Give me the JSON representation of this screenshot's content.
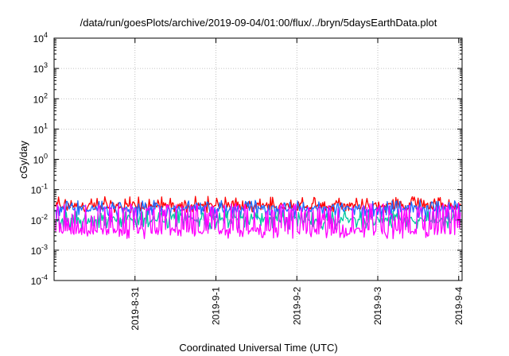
{
  "chart_data": {
    "type": "line",
    "title": "/data/run/goesPlots/archive/2019-09-04/01:00/flux/../bryn/5daysEarthData.plot",
    "xlabel": "Coordinated Universal Time (UTC)",
    "ylabel": "cGy/day",
    "yscale": "log",
    "ylim": [
      0.0001,
      10000
    ],
    "y_ticks": [
      {
        "base": "10",
        "exp": "-4",
        "value": 0.0001
      },
      {
        "base": "10",
        "exp": "-3",
        "value": 0.001
      },
      {
        "base": "10",
        "exp": "-2",
        "value": 0.01
      },
      {
        "base": "10",
        "exp": "-1",
        "value": 0.1
      },
      {
        "base": "10",
        "exp": "0",
        "value": 1
      },
      {
        "base": "10",
        "exp": "1",
        "value": 10
      },
      {
        "base": "10",
        "exp": "2",
        "value": 100
      },
      {
        "base": "10",
        "exp": "3",
        "value": 1000
      },
      {
        "base": "10",
        "exp": "4",
        "value": 10000
      }
    ],
    "xlim": [
      "2019-08-30T00:00",
      "2019-09-04T01:00"
    ],
    "x_ticks": [
      {
        "label": "2019-8-31",
        "value": "2019-08-31"
      },
      {
        "label": "2019-9-1",
        "value": "2019-09-01"
      },
      {
        "label": "2019-9-2",
        "value": "2019-09-02"
      },
      {
        "label": "2019-9-3",
        "value": "2019-09-03"
      },
      {
        "label": "2019-9-4",
        "value": "2019-09-04"
      }
    ],
    "grid": true,
    "series": [
      {
        "color": "#ff0000",
        "typical": 0.03,
        "low": 0.022,
        "high": 0.06
      },
      {
        "color": "#1a6dff",
        "typical": 0.024,
        "low": 0.013,
        "high": 0.045
      },
      {
        "color": "#00c8a0",
        "typical": 0.01,
        "low": 0.006,
        "high": 0.02
      },
      {
        "color": "#ff00ff",
        "typical": 0.0045,
        "low": 0.003,
        "high": 0.035
      }
    ]
  }
}
